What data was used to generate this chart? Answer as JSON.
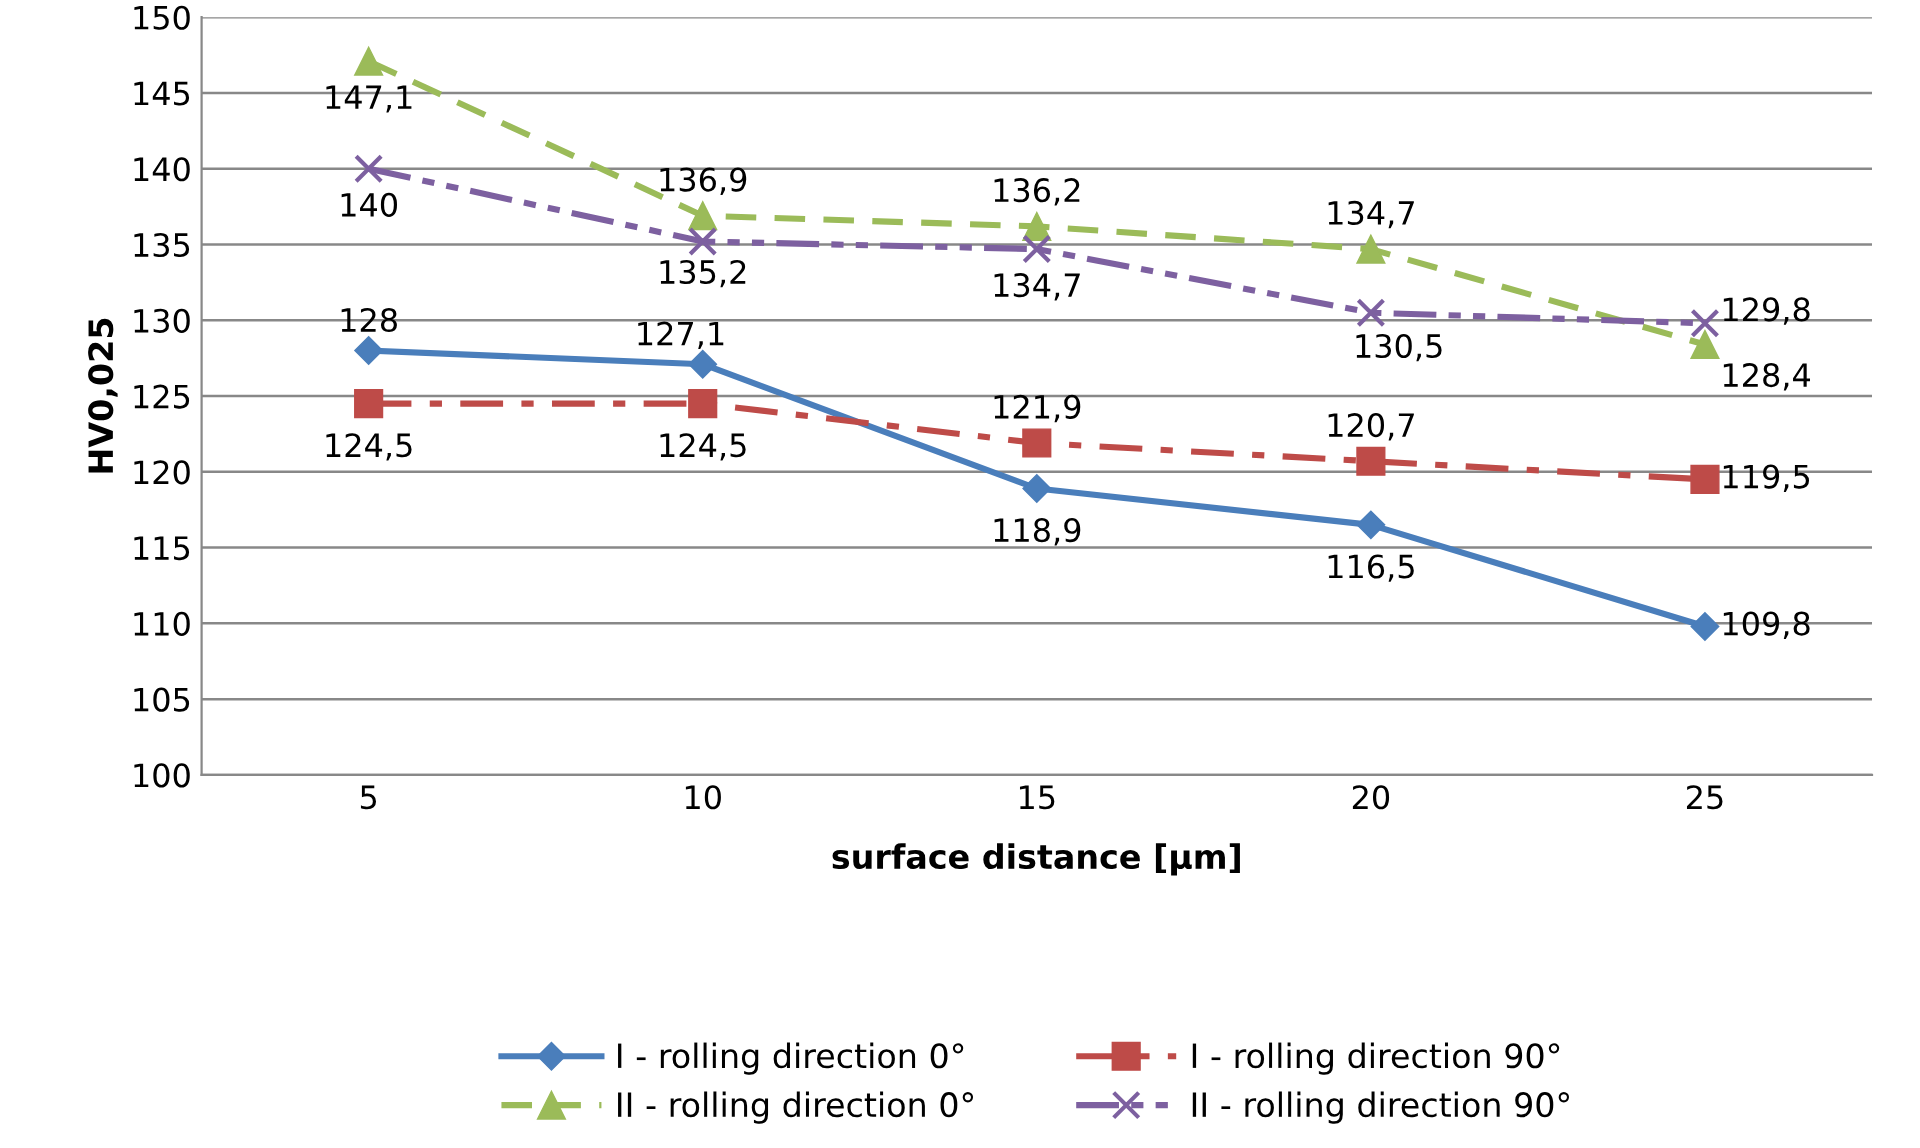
{
  "chart_data": {
    "type": "line",
    "xlabel": "surface distance [µm]",
    "ylabel": "HV0,025",
    "categories": [
      "5",
      "10",
      "15",
      "20",
      "25"
    ],
    "ylim": [
      100,
      150
    ],
    "yticks": [
      100,
      105,
      110,
      115,
      120,
      125,
      130,
      135,
      140,
      145,
      150
    ],
    "grid": "y",
    "legend": "bottom",
    "series": [
      {
        "name": "I - rolling direction 0°",
        "color": "#4a7ebb",
        "marker": "diamond",
        "line_style": "solid",
        "values": [
          128,
          127.1,
          118.9,
          116.5,
          109.8
        ],
        "value_labels": [
          "128",
          "127,1",
          "118,9",
          "116,5",
          "109,8"
        ]
      },
      {
        "name": "I - rolling direction 90°",
        "color": "#be4b48",
        "marker": "square",
        "line_style": "dashdot",
        "values": [
          124.5,
          124.5,
          121.9,
          120.7,
          119.5
        ],
        "value_labels": [
          "124,5",
          "124,5",
          "121,9",
          "120,7",
          "119,5"
        ]
      },
      {
        "name": "II - rolling direction 0°",
        "color": "#9bbb59",
        "marker": "triangle",
        "line_style": "dashed",
        "values": [
          147.1,
          136.9,
          136.2,
          134.7,
          128.4
        ],
        "value_labels": [
          "147,1",
          "136,9",
          "136,2",
          "134,7",
          "128,4"
        ]
      },
      {
        "name": "II - rolling direction 90°",
        "color": "#7d60a0",
        "marker": "cross",
        "line_style": "dashdotdot",
        "values": [
          140,
          135.2,
          134.7,
          130.5,
          129.8
        ],
        "value_labels": [
          "140",
          "135,2",
          "134,7",
          "130,5",
          "129,8"
        ]
      }
    ]
  }
}
